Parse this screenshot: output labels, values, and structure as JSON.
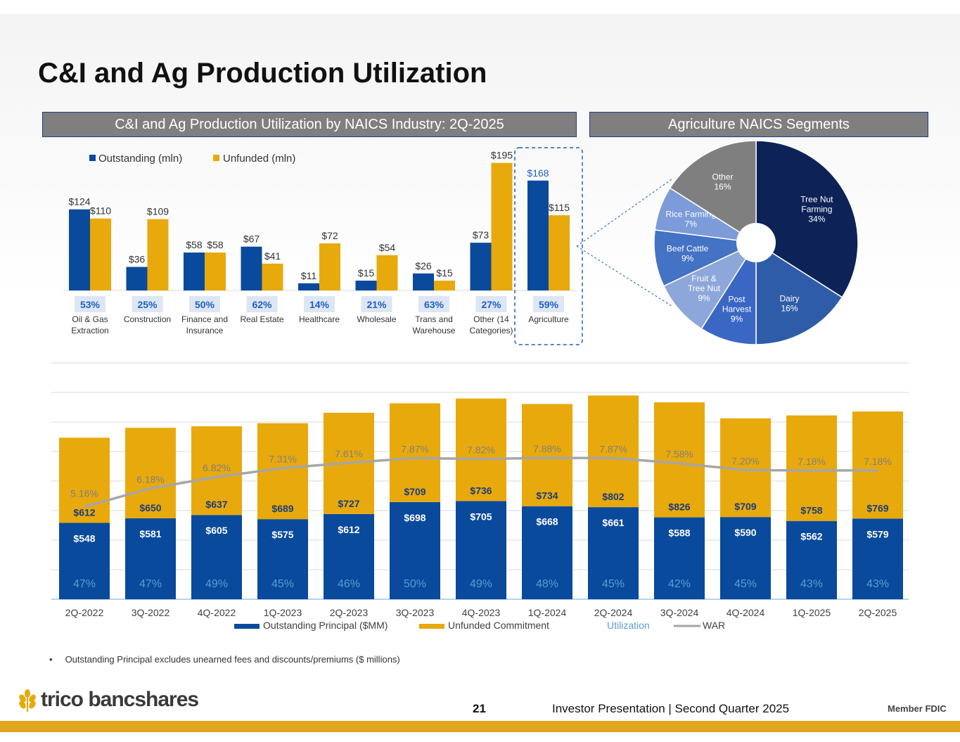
{
  "title": "C&I and Ag Production Utilization",
  "left_header": "C&I and Ag Production Utilization by NAICS Industry: 2Q-2025",
  "right_header": "Agriculture NAICS Segments",
  "colors": {
    "outstanding": "#0a4a9c",
    "unfunded": "#e8a90c",
    "navy": "#0d2357",
    "war_line": "#a6a6a6",
    "utilization_text": "#5b9bd5",
    "gray_header": "#7f7f7f"
  },
  "chart_data": [
    {
      "type": "bar",
      "title": "C&I and Ag Production Utilization by NAICS Industry: 2Q-2025",
      "legend": [
        "Outstanding (mln)",
        "Unfunded (mln)"
      ],
      "legend_position": "top-left",
      "categories": [
        "Oil & Gas Extraction",
        "Construction",
        "Finance and Insurance",
        "Real Estate",
        "Healthcare",
        "Wholesale",
        "Trans and Warehouse",
        "Other (14 Categories)",
        "Agriculture"
      ],
      "category_lines": [
        [
          "Oil & Gas",
          "Extraction"
        ],
        [
          "Construction"
        ],
        [
          "Finance and",
          "Insurance"
        ],
        [
          "Real Estate"
        ],
        [
          "Healthcare"
        ],
        [
          "Wholesale"
        ],
        [
          "Trans and",
          "Warehouse"
        ],
        [
          "Other (14",
          "Categories)"
        ],
        [
          "Agriculture"
        ]
      ],
      "series": [
        {
          "name": "Outstanding (mln)",
          "values": [
            124,
            36,
            58,
            67,
            11,
            15,
            26,
            73,
            168
          ],
          "labels": [
            "$124",
            "$36",
            "$58",
            "$67",
            "$11",
            "$15",
            "$26",
            "$73",
            "$168"
          ]
        },
        {
          "name": "Unfunded (mln)",
          "values": [
            110,
            109,
            58,
            41,
            72,
            54,
            15,
            195,
            115
          ],
          "labels": [
            "$110",
            "$109",
            "$58",
            "$41",
            "$72",
            "$54",
            "$15",
            "$195",
            "$115"
          ]
        }
      ],
      "utilization": [
        "53%",
        "25%",
        "50%",
        "62%",
        "14%",
        "21%",
        "63%",
        "27%",
        "59%"
      ],
      "ylim": [
        0,
        200
      ],
      "grid": false
    },
    {
      "type": "pie",
      "title": "Agriculture NAICS Segments",
      "slices": [
        {
          "label": "Tree Nut Farming",
          "pct_label": "34%",
          "value": 34,
          "color": "#0d2357",
          "lines": [
            "Tree Nut",
            "Farming",
            "34%"
          ]
        },
        {
          "label": "Dairy",
          "pct_label": "16%",
          "value": 16,
          "color": "#2e5ca8",
          "lines": [
            "Dairy",
            "16%"
          ]
        },
        {
          "label": "Post Harvest",
          "pct_label": "9%",
          "value": 9,
          "color": "#3a67c4",
          "lines": [
            "Post",
            "Harvest",
            "9%"
          ]
        },
        {
          "label": "Fruit & Tree Nut",
          "pct_label": "9%",
          "value": 9,
          "color": "#8ea7da",
          "lines": [
            "Fruit &",
            "Tree Nut",
            "9%"
          ]
        },
        {
          "label": "Beef Cattle",
          "pct_label": "9%",
          "value": 9,
          "color": "#4472c4",
          "lines": [
            "Beef Cattle",
            "9%"
          ]
        },
        {
          "label": "Rice Farming",
          "pct_label": "7%",
          "value": 7,
          "color": "#7d9bd8",
          "lines": [
            "Rice Farming",
            "7%"
          ]
        },
        {
          "label": "Other",
          "pct_label": "16%",
          "value": 16,
          "color": "#7f7f7f",
          "lines": [
            "Other",
            "16%"
          ]
        }
      ]
    },
    {
      "type": "bar",
      "stacked": true,
      "categories": [
        "2Q-2022",
        "3Q-2022",
        "4Q-2022",
        "1Q-2023",
        "2Q-2023",
        "3Q-2023",
        "4Q-2023",
        "1Q-2024",
        "2Q-2024",
        "3Q-2024",
        "4Q-2024",
        "1Q-2025",
        "2Q-2025"
      ],
      "series": [
        {
          "name": "Outstanding Principal ($MM)",
          "values": [
            548,
            581,
            605,
            575,
            612,
            698,
            705,
            668,
            661,
            588,
            590,
            562,
            579
          ],
          "labels": [
            "$548",
            "$581",
            "$605",
            "$575",
            "$612",
            "$698",
            "$705",
            "$668",
            "$661",
            "$588",
            "$590",
            "$562",
            "$579"
          ]
        },
        {
          "name": "Unfunded Commitment",
          "values": [
            612,
            650,
            637,
            689,
            727,
            709,
            736,
            734,
            802,
            826,
            709,
            758,
            769
          ],
          "labels": [
            "$612",
            "$650",
            "$637",
            "$689",
            "$727",
            "$709",
            "$736",
            "$734",
            "$802",
            "$826",
            "$709",
            "$758",
            "$769"
          ]
        },
        {
          "name": "WAR",
          "type": "line",
          "values": [
            5.16,
            6.18,
            6.82,
            7.31,
            7.61,
            7.87,
            7.82,
            7.88,
            7.87,
            7.58,
            7.2,
            7.18,
            7.18
          ],
          "labels": [
            "5.16%",
            "6.18%",
            "6.82%",
            "7.31%",
            "7.61%",
            "7.87%",
            "7.82%",
            "7.88%",
            "7.87%",
            "7.58%",
            "7.20%",
            "7.18%",
            "7.18%"
          ]
        }
      ],
      "utilization": [
        "47%",
        "47%",
        "49%",
        "45%",
        "46%",
        "50%",
        "49%",
        "48%",
        "45%",
        "42%",
        "45%",
        "43%",
        "43%"
      ],
      "legend": [
        "Outstanding Principal ($MM)",
        "Unfunded Commitment",
        "Utilization",
        "WAR"
      ],
      "legend_position": "bottom",
      "grid": true
    }
  ],
  "footnote": "Outstanding Principal excludes unearned fees and discounts/premiums ($ millions)",
  "footer": {
    "logo_text": "trico bancshares",
    "page_number": "21",
    "presentation": "Investor Presentation  |  Second Quarter 2025",
    "fdic": "Member FDIC"
  }
}
